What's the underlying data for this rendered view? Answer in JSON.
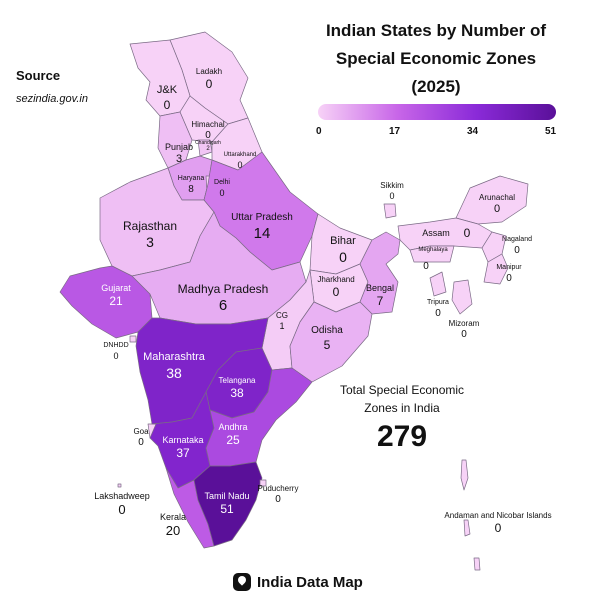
{
  "title_lines": [
    "Indian States by Number of",
    "Special Economic Zones",
    "(2025)"
  ],
  "source": {
    "label": "Source",
    "value": "sezindia.gov.in"
  },
  "legend": {
    "ticks": [
      "0",
      "17",
      "34",
      "51"
    ],
    "colors": [
      "#f7d2f7",
      "#c866e8",
      "#8a2ad8",
      "#5a1099"
    ]
  },
  "total": {
    "label_line1": "Total Special Economic",
    "label_line2": "Zones in India",
    "value": "279"
  },
  "brand": {
    "icon": "map-pin-icon",
    "text": "India Data Map"
  },
  "regions": [
    {
      "key": "ladakh",
      "name": "Ladakh",
      "value": "0"
    },
    {
      "key": "jk",
      "name": "J&K",
      "value": "0"
    },
    {
      "key": "himachal",
      "name": "Himachal",
      "value": "0"
    },
    {
      "key": "punjab",
      "name": "Punjab",
      "value": "3"
    },
    {
      "key": "chandigarh",
      "name": "Chandigarh",
      "value": "2"
    },
    {
      "key": "uttarakhand",
      "name": "Uttarakhand",
      "value": "0"
    },
    {
      "key": "haryana",
      "name": "Haryana",
      "value": "8"
    },
    {
      "key": "delhi",
      "name": "Delhi",
      "value": "0"
    },
    {
      "key": "rajasthan",
      "name": "Rajasthan",
      "value": "3"
    },
    {
      "key": "up",
      "name": "Uttar Pradesh",
      "value": "14"
    },
    {
      "key": "bihar",
      "name": "Bihar",
      "value": "0"
    },
    {
      "key": "sikkim",
      "name": "Sikkim",
      "value": "0"
    },
    {
      "key": "arunachal",
      "name": "Arunachal",
      "value": "0"
    },
    {
      "key": "assam",
      "name": "Assam",
      "value": "0"
    },
    {
      "key": "meghalaya",
      "name": "Meghalaya",
      "value": "0"
    },
    {
      "key": "nagaland",
      "name": "Nagaland",
      "value": "0"
    },
    {
      "key": "manipur",
      "name": "Manipur",
      "value": "0"
    },
    {
      "key": "tripura",
      "name": "Tripura",
      "value": "0"
    },
    {
      "key": "mizoram",
      "name": "Mizoram",
      "value": "0"
    },
    {
      "key": "gujarat",
      "name": "Gujarat",
      "value": "21"
    },
    {
      "key": "mp",
      "name": "Madhya Pradesh",
      "value": "6"
    },
    {
      "key": "jharkhand",
      "name": "Jharkhand",
      "value": "0"
    },
    {
      "key": "bengal",
      "name": "Bengal",
      "value": "7"
    },
    {
      "key": "cg",
      "name": "CG",
      "value": "1"
    },
    {
      "key": "odisha",
      "name": "Odisha",
      "value": "5"
    },
    {
      "key": "dnhdd",
      "name": "DNHDD",
      "value": "0"
    },
    {
      "key": "maharashtra",
      "name": "Maharashtra",
      "value": "38"
    },
    {
      "key": "telangana",
      "name": "Telangana",
      "value": "38"
    },
    {
      "key": "goa",
      "name": "Goa",
      "value": "0"
    },
    {
      "key": "karnataka",
      "name": "Karnataka",
      "value": "37"
    },
    {
      "key": "andhra",
      "name": "Andhra",
      "value": "25"
    },
    {
      "key": "lakshadweep",
      "name": "Lakshadweep",
      "value": "0"
    },
    {
      "key": "kerala",
      "name": "Kerala",
      "value": "20"
    },
    {
      "key": "tamilnadu",
      "name": "Tamil Nadu",
      "value": "51"
    },
    {
      "key": "puducherry",
      "name": "Puducherry",
      "value": "0"
    },
    {
      "key": "andaman",
      "name": "Andaman and Nicobar Islands",
      "value": "0"
    }
  ]
}
